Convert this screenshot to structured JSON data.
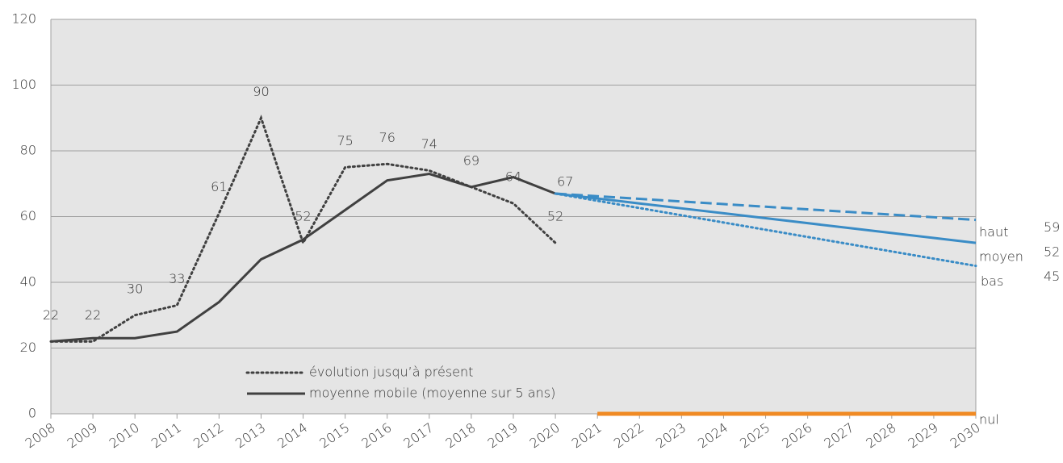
{
  "chart_data": {
    "type": "line",
    "x": [
      2008,
      2009,
      2010,
      2011,
      2012,
      2013,
      2014,
      2015,
      2016,
      2017,
      2018,
      2019,
      2020,
      2021,
      2022,
      2023,
      2024,
      2025,
      2026,
      2027,
      2028,
      2029,
      2030
    ],
    "xlim": [
      2008,
      2030
    ],
    "xticks": [
      2008,
      2009,
      2010,
      2011,
      2012,
      2013,
      2014,
      2015,
      2016,
      2017,
      2018,
      2019,
      2020,
      2021,
      2022,
      2023,
      2024,
      2025,
      2026,
      2027,
      2028,
      2029,
      2030
    ],
    "ylim": [
      0,
      120
    ],
    "yticks": [
      0,
      20,
      40,
      60,
      80,
      100,
      120
    ],
    "grid": true,
    "series": [
      {
        "name": "évolution jusqu’à présent",
        "color": "#404040",
        "dash": "dotted",
        "label_position": "legend",
        "data_labels": true,
        "values": [
          22,
          22,
          30,
          33,
          61,
          90,
          52,
          75,
          76,
          74,
          69,
          64,
          52,
          null,
          null,
          null,
          null,
          null,
          null,
          null,
          null,
          null,
          null
        ]
      },
      {
        "name": "moyenne mobile (moyenne sur 5 ans)",
        "color": "#404040",
        "dash": "solid",
        "label_position": "legend",
        "values": [
          22,
          23,
          23,
          25,
          34,
          47,
          53,
          62,
          71,
          73,
          69,
          72,
          67,
          null,
          null,
          null,
          null,
          null,
          null,
          null,
          null,
          null,
          null
        ]
      },
      {
        "name": "haut",
        "color": "#3a8cc6",
        "dash": "dashed",
        "label_position": "end",
        "end_value_label": true,
        "values": [
          null,
          null,
          null,
          null,
          null,
          null,
          null,
          null,
          null,
          null,
          null,
          null,
          67,
          66.2,
          65.4,
          64.6,
          63.8,
          63,
          62.2,
          61.4,
          60.6,
          59.8,
          59
        ]
      },
      {
        "name": "moyen",
        "color": "#3a8cc6",
        "dash": "solid",
        "label_position": "end",
        "end_value_label": true,
        "start_value_label": true,
        "values": [
          null,
          null,
          null,
          null,
          null,
          null,
          null,
          null,
          null,
          null,
          null,
          null,
          67,
          65.5,
          64,
          62.5,
          61,
          59.5,
          58,
          56.5,
          55,
          53.5,
          52
        ]
      },
      {
        "name": "bas",
        "color": "#3a8cc6",
        "dash": "dotted",
        "label_position": "end",
        "end_value_label": true,
        "values": [
          null,
          null,
          null,
          null,
          null,
          null,
          null,
          null,
          null,
          null,
          null,
          null,
          67,
          64.8,
          62.6,
          60.4,
          58.2,
          56,
          53.8,
          51.6,
          49.4,
          47.2,
          45
        ]
      },
      {
        "name": "nul",
        "color": "#f08a24",
        "dash": "solid",
        "label_position": "end",
        "values": [
          null,
          null,
          null,
          null,
          null,
          null,
          null,
          null,
          null,
          null,
          null,
          null,
          null,
          0,
          0,
          0,
          0,
          0,
          0,
          0,
          0,
          0,
          0
        ]
      }
    ]
  }
}
